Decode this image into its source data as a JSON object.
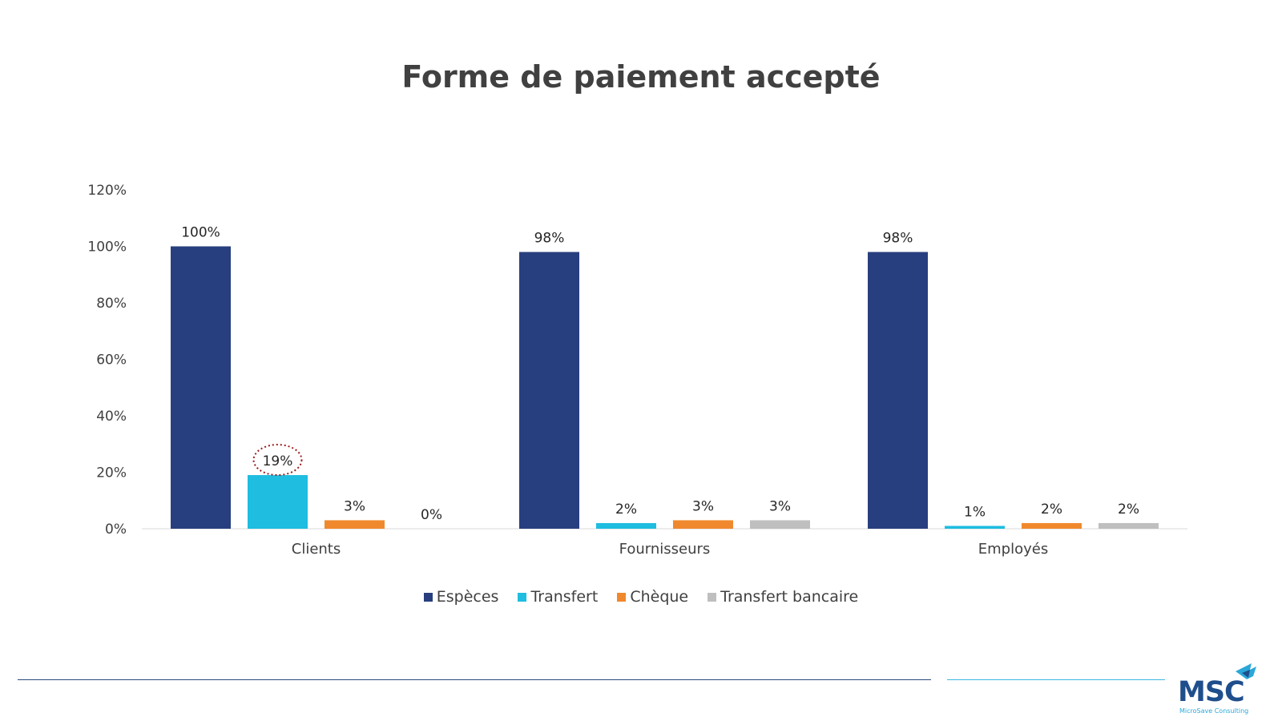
{
  "chart_data": {
    "type": "bar",
    "title": "Forme de paiement accepté",
    "categories": [
      "Clients",
      "Fournisseurs",
      "Employés"
    ],
    "series": [
      {
        "name": "Espèces",
        "color": "#283f7f",
        "values": [
          100,
          98,
          98
        ],
        "labels": [
          "100%",
          "98%",
          "98%"
        ]
      },
      {
        "name": "Transfert",
        "color": "#1fbde0",
        "values": [
          19,
          2,
          1
        ],
        "labels": [
          "19%",
          "2%",
          "1%"
        ]
      },
      {
        "name": "Chèque",
        "color": "#f0892d",
        "values": [
          3,
          3,
          2
        ],
        "labels": [
          "3%",
          "3%",
          "2%"
        ]
      },
      {
        "name": "Transfert bancaire",
        "color": "#bfbfbf",
        "values": [
          0,
          3,
          2
        ],
        "labels": [
          "0%",
          "3%",
          "2%"
        ]
      }
    ],
    "ylim": [
      0,
      120
    ],
    "yticks": [
      "0%",
      "20%",
      "40%",
      "60%",
      "80%",
      "100%",
      "120%"
    ],
    "grid": false,
    "legend_position": "bottom",
    "highlight": {
      "series": 1,
      "category": 0,
      "style": "dotted-circle",
      "color": "#9b1c1c"
    }
  },
  "footer": {
    "logo_text": "MSC",
    "logo_subtext": "MicroSave Consulting"
  }
}
